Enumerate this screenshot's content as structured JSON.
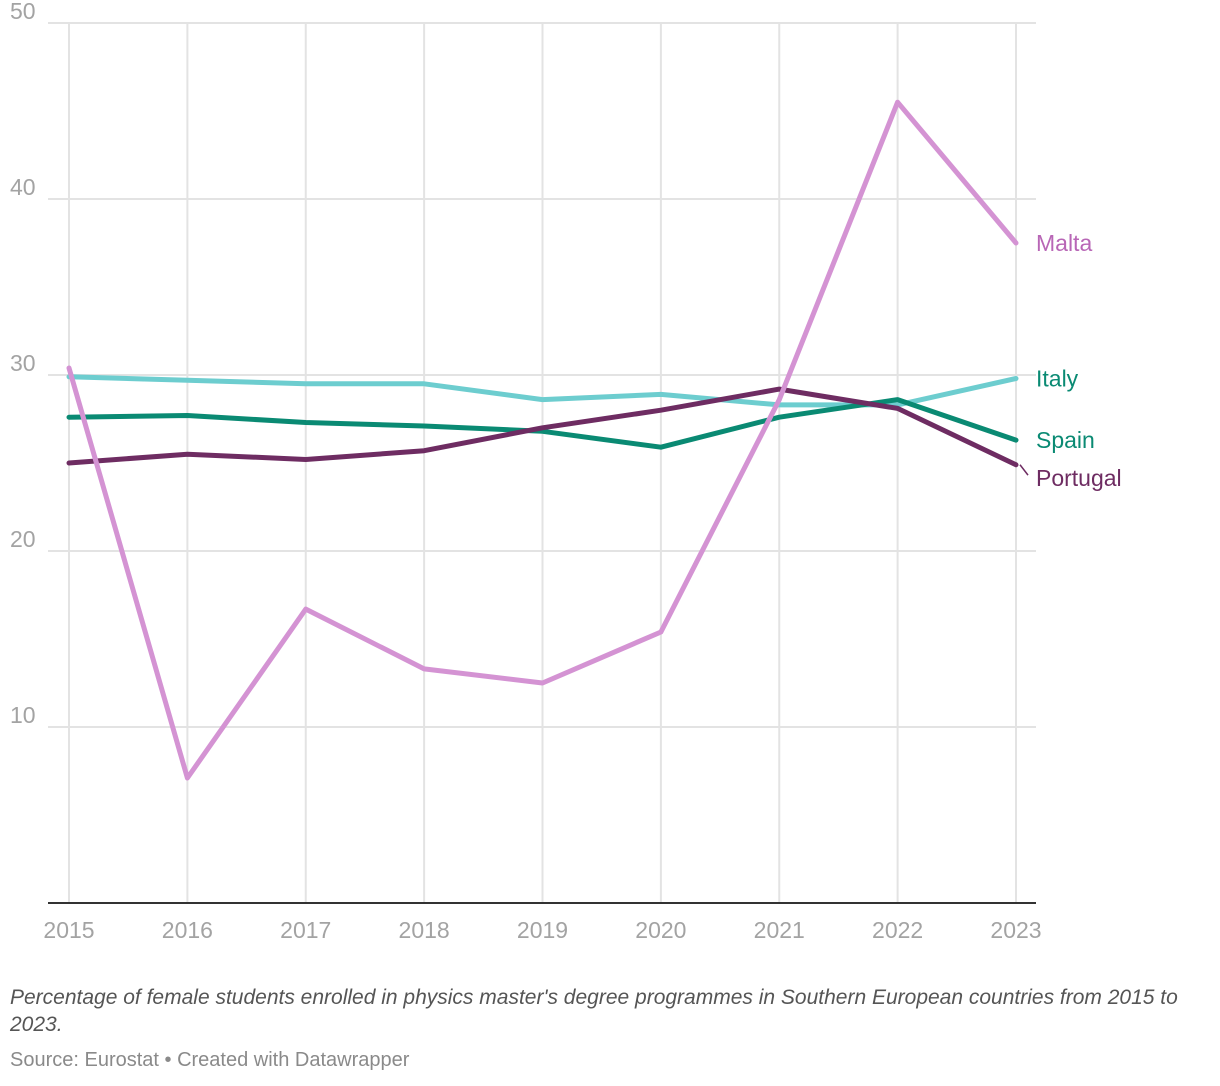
{
  "chart_data": {
    "type": "line",
    "title": "",
    "xlabel": "",
    "ylabel": "",
    "x": [
      "2015",
      "2016",
      "2017",
      "2018",
      "2019",
      "2020",
      "2021",
      "2022",
      "2023"
    ],
    "ylim": [
      0,
      50
    ],
    "yticks": [
      10,
      20,
      30,
      40,
      50
    ],
    "grid": true,
    "legend": "direct labels at right end of lines",
    "series": [
      {
        "name": "Italy",
        "color": "#6dcdcf",
        "label_color": "#0a8a73",
        "values": [
          29.9,
          29.7,
          29.5,
          29.5,
          28.6,
          28.9,
          28.3,
          28.3,
          29.8
        ]
      },
      {
        "name": "Spain",
        "color": "#0a8a73",
        "label_color": "#0a8a73",
        "values": [
          27.6,
          27.7,
          27.3,
          27.1,
          26.8,
          25.9,
          27.6,
          28.6,
          26.3
        ]
      },
      {
        "name": "Portugal",
        "color": "#6e2c62",
        "label_color": "#6e2c62",
        "values": [
          25.0,
          25.5,
          25.2,
          25.7,
          27.0,
          28.0,
          29.2,
          28.1,
          24.9
        ]
      },
      {
        "name": "Malta",
        "color": "#d493d3",
        "label_color": "#b866b6",
        "values": [
          30.4,
          7.1,
          16.7,
          13.3,
          12.5,
          15.4,
          28.6,
          45.5,
          37.5
        ]
      }
    ]
  },
  "caption": "Percentage of female students enrolled in physics master's degree programmes in Southern European countries from 2015 to 2023.",
  "footer": "Source: Eurostat • Created with Datawrapper"
}
